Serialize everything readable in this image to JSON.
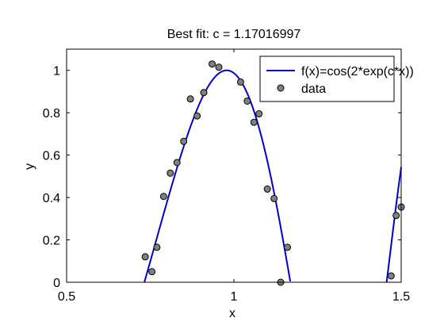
{
  "chart_data": {
    "type": "line",
    "title": "Best fit: c = 1.17016997",
    "xlabel": "x",
    "ylabel": "y",
    "xlim": [
      0.5,
      1.5
    ],
    "ylim": [
      0,
      1.1
    ],
    "xticks": [
      0.5,
      1,
      1.5
    ],
    "xtick_labels": [
      "0.5",
      "1",
      "1.5"
    ],
    "yticks": [
      0,
      0.2,
      0.4,
      0.6,
      0.8,
      1
    ],
    "ytick_labels": [
      "0",
      "0.2",
      "0.4",
      "0.6",
      "0.8",
      "1"
    ],
    "grid": false,
    "legend_position": "top-right",
    "series": [
      {
        "name": "f(x)=cos(2*exp(c*x))",
        "kind": "line",
        "color": "#0000cc",
        "function": "cos(2*exp(c*x))",
        "c": 1.17016997
      },
      {
        "name": "data",
        "kind": "scatter",
        "color": "#808080",
        "edge_color": "#000000",
        "points": [
          [
            0.735,
            0.12
          ],
          [
            0.755,
            0.05
          ],
          [
            0.77,
            0.165
          ],
          [
            0.79,
            0.405
          ],
          [
            0.81,
            0.515
          ],
          [
            0.83,
            0.565
          ],
          [
            0.85,
            0.665
          ],
          [
            0.87,
            0.865
          ],
          [
            0.89,
            0.785
          ],
          [
            0.91,
            0.895
          ],
          [
            0.935,
            1.03
          ],
          [
            0.955,
            1.015
          ],
          [
            1.02,
            0.945
          ],
          [
            1.04,
            0.855
          ],
          [
            1.06,
            0.755
          ],
          [
            1.075,
            0.795
          ],
          [
            1.1,
            0.44
          ],
          [
            1.12,
            0.395
          ],
          [
            1.14,
            0.0
          ],
          [
            1.16,
            0.165
          ],
          [
            1.47,
            0.03
          ],
          [
            1.485,
            0.315
          ],
          [
            1.5,
            0.355
          ]
        ]
      }
    ]
  }
}
